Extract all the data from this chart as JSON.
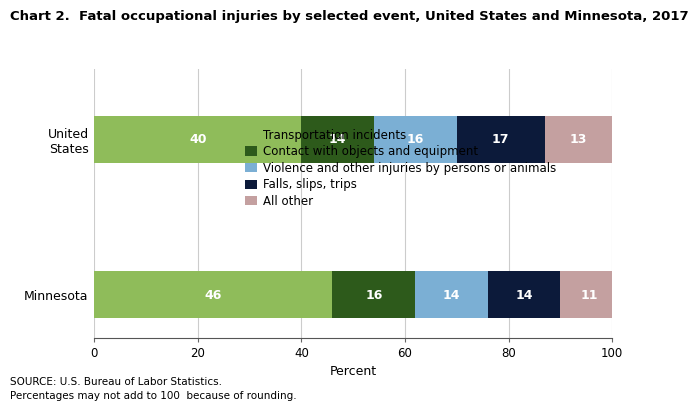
{
  "title": "Chart 2.  Fatal occupational injuries by selected event, United States and Minnesota, 2017",
  "categories": [
    "United States",
    "Minnesota"
  ],
  "cat_labels": [
    "United\nStates",
    "Minnesota"
  ],
  "segments": [
    {
      "label": "Transportation incidents",
      "color": "#8fbc5a",
      "values": [
        40,
        46
      ]
    },
    {
      "label": "Contact with objects and equipment",
      "color": "#2d5a1b",
      "values": [
        14,
        16
      ]
    },
    {
      "label": "Violence and other injuries by persons or animals",
      "color": "#7bafd4",
      "values": [
        16,
        14
      ]
    },
    {
      "label": "Falls, slips, trips",
      "color": "#0c1a3a",
      "values": [
        17,
        14
      ]
    },
    {
      "label": "All other",
      "color": "#c4a0a0",
      "values": [
        13,
        11
      ]
    }
  ],
  "xlim": [
    0,
    100
  ],
  "xticks": [
    0,
    20,
    40,
    60,
    80,
    100
  ],
  "xlabel": "Percent",
  "source_line1": "SOURCE: U.S. Bureau of Labor Statistics.",
  "source_line2": "Percentages may not add to 100  because of rounding.",
  "bar_height": 0.6,
  "text_color_white": "#ffffff",
  "grid_color": "#cccccc",
  "bg_color": "#ffffff",
  "title_fontsize": 9.5,
  "bar_label_fontsize": 9,
  "ytick_fontsize": 9,
  "xtick_fontsize": 8.5,
  "legend_fontsize": 8.5,
  "source_fontsize": 7.5,
  "xlabel_fontsize": 9
}
